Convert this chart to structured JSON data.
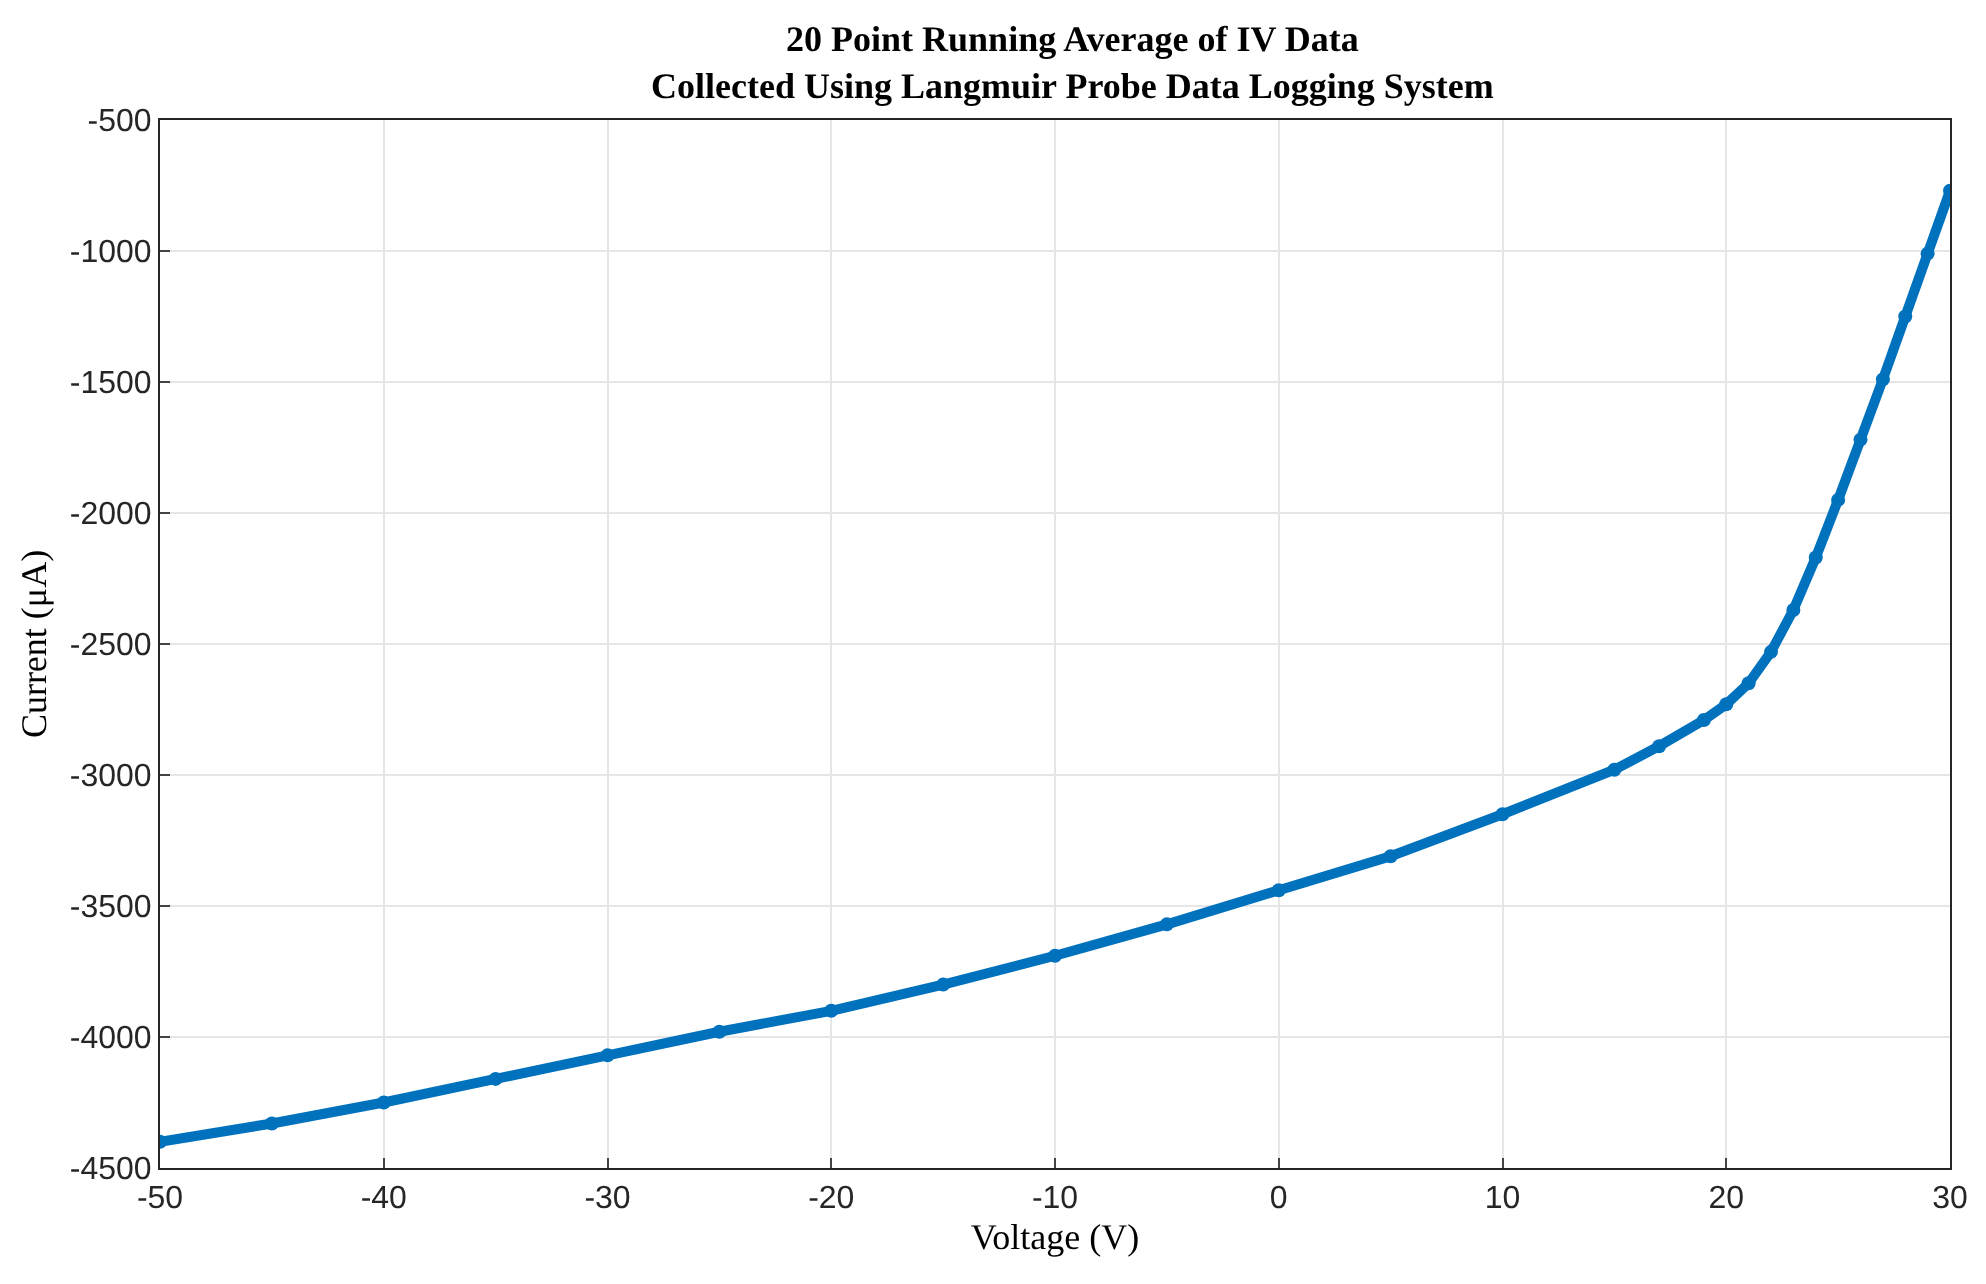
{
  "chart_data": {
    "type": "line",
    "title": "20 Point Running Average of IV Data\nCollected Using Langmuir Probe Data Logging System",
    "xlabel": "Voltage (V)",
    "ylabel": "Current (μA)",
    "x": [
      -50,
      -45,
      -40,
      -35,
      -30,
      -25,
      -20,
      -15,
      -10,
      -5,
      0,
      5,
      10,
      15,
      17,
      19,
      20,
      21,
      22,
      23,
      24,
      25,
      26,
      27,
      28,
      29,
      30
    ],
    "series": [
      {
        "color": "#0072bd",
        "values": [
          -4400,
          -4330,
          -4250,
          -4160,
          -4070,
          -3980,
          -3900,
          -3800,
          -3690,
          -3570,
          -3440,
          -3310,
          -3150,
          -2980,
          -2890,
          -2790,
          -2730,
          -2650,
          -2530,
          -2370,
          -2170,
          -1950,
          -1720,
          -1490,
          -1250,
          -1010,
          -770
        ]
      }
    ],
    "xlim": [
      -50,
      30
    ],
    "xticks": [
      -50,
      -40,
      -30,
      -20,
      -10,
      0,
      10,
      20,
      30
    ],
    "ylim": [
      -4500,
      -500
    ],
    "yticks": [
      -4500,
      -4000,
      -3500,
      -3000,
      -2500,
      -2000,
      -1500,
      -1000,
      -500
    ],
    "grid": true,
    "marker": "circle",
    "line_style": "solid"
  }
}
